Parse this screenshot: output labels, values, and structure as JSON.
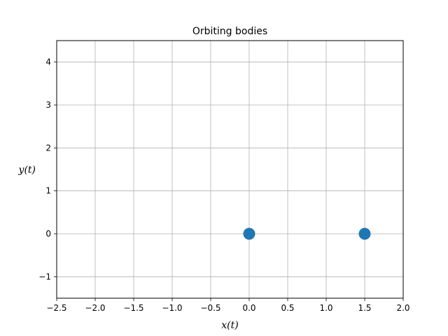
{
  "chart_data": {
    "type": "scatter",
    "title": "Orbiting bodies",
    "xlabel": "x(t)",
    "ylabel": "y(t)",
    "xlim": [
      -2.5,
      2.0
    ],
    "ylim": [
      -1.5,
      4.5
    ],
    "xticks": [
      -2.5,
      -2.0,
      -1.5,
      -1.0,
      -0.5,
      0.0,
      0.5,
      1.0,
      1.5,
      2.0
    ],
    "xtick_labels": [
      "−2.5",
      "−2.0",
      "−1.5",
      "−1.0",
      "−0.5",
      "0.0",
      "0.5",
      "1.0",
      "1.5",
      "2.0"
    ],
    "yticks": [
      -1,
      0,
      1,
      2,
      3,
      4
    ],
    "ytick_labels": [
      "−1",
      "0",
      "1",
      "2",
      "3",
      "4"
    ],
    "grid": true,
    "series": [
      {
        "points": [
          {
            "x": 0.0,
            "y": 0.0
          },
          {
            "x": 1.5,
            "y": 0.0
          }
        ],
        "color": "#1f77b4"
      }
    ]
  }
}
